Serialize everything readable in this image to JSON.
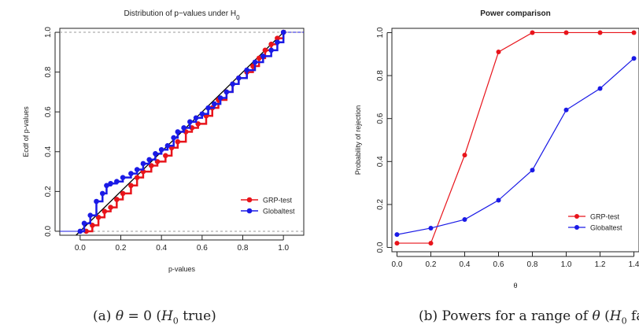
{
  "chart_data": [
    {
      "type": "line",
      "title": "Distribution of p−values under H",
      "title_subscript": "0",
      "xlabel": "p-values",
      "ylabel": "Ecdf of p-values",
      "xlim": [
        -0.1,
        1.1
      ],
      "ylim": [
        -0.02,
        1.02
      ],
      "xticks": [
        "0.0",
        "0.2",
        "0.4",
        "0.6",
        "0.8",
        "1.0"
      ],
      "yticks": [
        "0.0",
        "0.2",
        "0.4",
        "0.6",
        "0.8",
        "1.0"
      ],
      "reference_lines": {
        "diagonal": true,
        "horizontal_dashed": [
          0,
          1
        ]
      },
      "legend_position": "bottom-right",
      "series": [
        {
          "name": "GRP-test",
          "color": "#e8141b",
          "x": [
            0.03,
            0.06,
            0.09,
            0.12,
            0.15,
            0.18,
            0.21,
            0.25,
            0.28,
            0.31,
            0.35,
            0.38,
            0.42,
            0.45,
            0.48,
            0.52,
            0.55,
            0.58,
            0.62,
            0.65,
            0.68,
            0.72,
            0.75,
            0.78,
            0.82,
            0.85,
            0.88,
            0.91,
            0.94,
            0.97,
            1.0
          ],
          "y": [
            0.0,
            0.03,
            0.07,
            0.1,
            0.12,
            0.16,
            0.19,
            0.23,
            0.27,
            0.3,
            0.33,
            0.35,
            0.38,
            0.42,
            0.45,
            0.5,
            0.52,
            0.54,
            0.58,
            0.62,
            0.66,
            0.7,
            0.74,
            0.77,
            0.8,
            0.83,
            0.87,
            0.91,
            0.94,
            0.97,
            1.0
          ]
        },
        {
          "name": "Globaltest",
          "color": "#1a1ae6",
          "x": [
            0.0,
            0.02,
            0.05,
            0.08,
            0.11,
            0.13,
            0.15,
            0.18,
            0.21,
            0.25,
            0.28,
            0.31,
            0.34,
            0.37,
            0.4,
            0.43,
            0.46,
            0.48,
            0.51,
            0.54,
            0.57,
            0.6,
            0.63,
            0.66,
            0.69,
            0.72,
            0.75,
            0.78,
            0.82,
            0.86,
            0.9,
            0.94,
            0.97,
            1.0
          ],
          "y": [
            0.0,
            0.04,
            0.08,
            0.15,
            0.19,
            0.23,
            0.24,
            0.25,
            0.27,
            0.29,
            0.31,
            0.34,
            0.36,
            0.39,
            0.41,
            0.43,
            0.47,
            0.5,
            0.52,
            0.55,
            0.57,
            0.59,
            0.62,
            0.64,
            0.67,
            0.7,
            0.74,
            0.77,
            0.81,
            0.85,
            0.88,
            0.91,
            0.95,
            1.0
          ]
        }
      ]
    },
    {
      "type": "line",
      "title": "Power comparison",
      "xlabel": "θ",
      "ylabel": "Probability of rejection",
      "xlim": [
        -0.03,
        1.43
      ],
      "ylim": [
        -0.02,
        1.02
      ],
      "xticks": [
        "0.0",
        "0.2",
        "0.4",
        "0.6",
        "0.8",
        "1.0",
        "1.2",
        "1.4"
      ],
      "yticks": [
        "0.0",
        "0.2",
        "0.4",
        "0.6",
        "0.8",
        "1.0"
      ],
      "legend_position": "bottom-right",
      "x": [
        0.0,
        0.2,
        0.4,
        0.6,
        0.8,
        1.0,
        1.2,
        1.4
      ],
      "series": [
        {
          "name": "GRP-test",
          "color": "#e8141b",
          "values": [
            0.02,
            0.02,
            0.43,
            0.91,
            1.0,
            1.0,
            1.0,
            1.0
          ]
        },
        {
          "name": "Globaltest",
          "color": "#1a1ae6",
          "values": [
            0.06,
            0.09,
            0.13,
            0.22,
            0.36,
            0.64,
            0.74,
            0.88
          ]
        }
      ]
    }
  ],
  "captions": {
    "a": {
      "label": "(a)",
      "theta": "θ",
      "eq": "= 0 (",
      "h": "H",
      "sub": "0",
      "rest": " true)"
    },
    "b": {
      "label": "(b) Powers for a range of",
      "theta": "θ",
      "open": "(",
      "h": "H",
      "sub": "0",
      "rest": " false)"
    }
  }
}
